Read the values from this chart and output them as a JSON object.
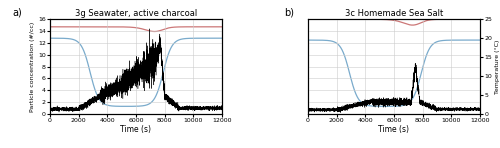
{
  "title_a": "3g Seawater, active charcoal",
  "title_b": "3c Homemade Sea Salt",
  "label_a": "a)",
  "label_b": "b)",
  "xlabel": "Time (s)",
  "ylabel_left": "Particle concentration (#/cc)",
  "ylabel_right": "Temperature (°C)",
  "xlim": [
    0,
    12000
  ],
  "ylim_particle": [
    0,
    16
  ],
  "ylim_temp": [
    0,
    25
  ],
  "yticks_particle": [
    0,
    2,
    4,
    6,
    8,
    10,
    12,
    14,
    16
  ],
  "yticks_temp": [
    0,
    5,
    10,
    15,
    20,
    25
  ],
  "xticks": [
    0,
    2000,
    4000,
    6000,
    8000,
    10000,
    12000
  ],
  "particle_color": "black",
  "saline_temp_color": "#7aabcc",
  "air_temp_color": "#cc7777",
  "grid_color": "#cccccc",
  "background_color": "white"
}
